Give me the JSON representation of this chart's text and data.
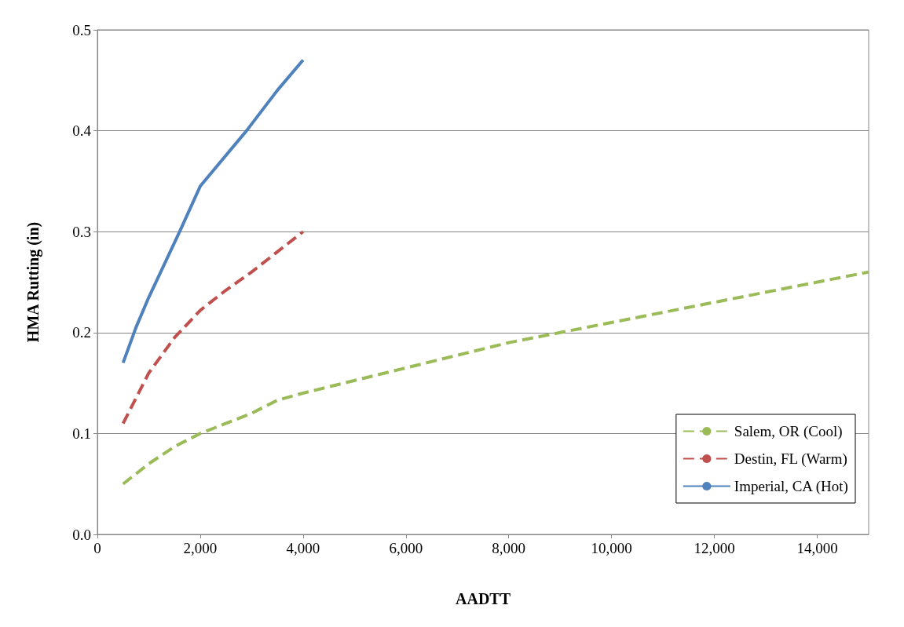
{
  "chart_data": {
    "type": "line",
    "xlabel": "AADTT",
    "ylabel": "HMA Rutting (in)",
    "xlim": [
      0,
      15000
    ],
    "xticks": [
      0,
      {
        "value": 2000,
        "label": "2,000"
      },
      {
        "value": 4000,
        "label": "4,000"
      },
      {
        "value": 6000,
        "label": "6,000"
      },
      {
        "value": 8000,
        "label": "8,000"
      },
      {
        "value": 10000,
        "label": "10,000"
      },
      {
        "value": 12000,
        "label": "12,000"
      },
      {
        "value": 14000,
        "label": "14,000"
      }
    ],
    "ylim": [
      0,
      0.5
    ],
    "yticks": [
      {
        "value": 0,
        "label": "0.0"
      },
      0.1,
      0.2,
      0.3,
      0.4,
      0.5
    ],
    "grid": "y",
    "legend": "bottom right",
    "marker": "none",
    "series": [
      {
        "name": "Salem, OR (Cool)",
        "color": "#9bbb59",
        "line_style": "dashed",
        "x": [
          500,
          1000,
          1500,
          2000,
          3000,
          3500,
          4000,
          6000,
          8000,
          9000,
          10000,
          12000,
          14000,
          15000
        ],
        "values": [
          0.05,
          0.07,
          0.087,
          0.1,
          0.12,
          0.133,
          0.14,
          0.165,
          0.19,
          0.2,
          0.21,
          0.23,
          0.25,
          0.26
        ]
      },
      {
        "name": "Destin, FL (Warm)",
        "color": "#c0504d",
        "line_style": "dashed",
        "x": [
          500,
          1000,
          1500,
          2000,
          2500,
          3000,
          3500,
          4000
        ],
        "values": [
          0.11,
          0.16,
          0.195,
          0.222,
          0.242,
          0.26,
          0.28,
          0.3
        ]
      },
      {
        "name": "Imperial, CA (Hot)",
        "color": "#4f81bd",
        "line_style": "solid",
        "x": [
          500,
          750,
          1000,
          1600,
          2000,
          2900,
          3500,
          4000
        ],
        "values": [
          0.17,
          0.205,
          0.235,
          0.3,
          0.345,
          0.4,
          0.44,
          0.47
        ]
      }
    ]
  }
}
